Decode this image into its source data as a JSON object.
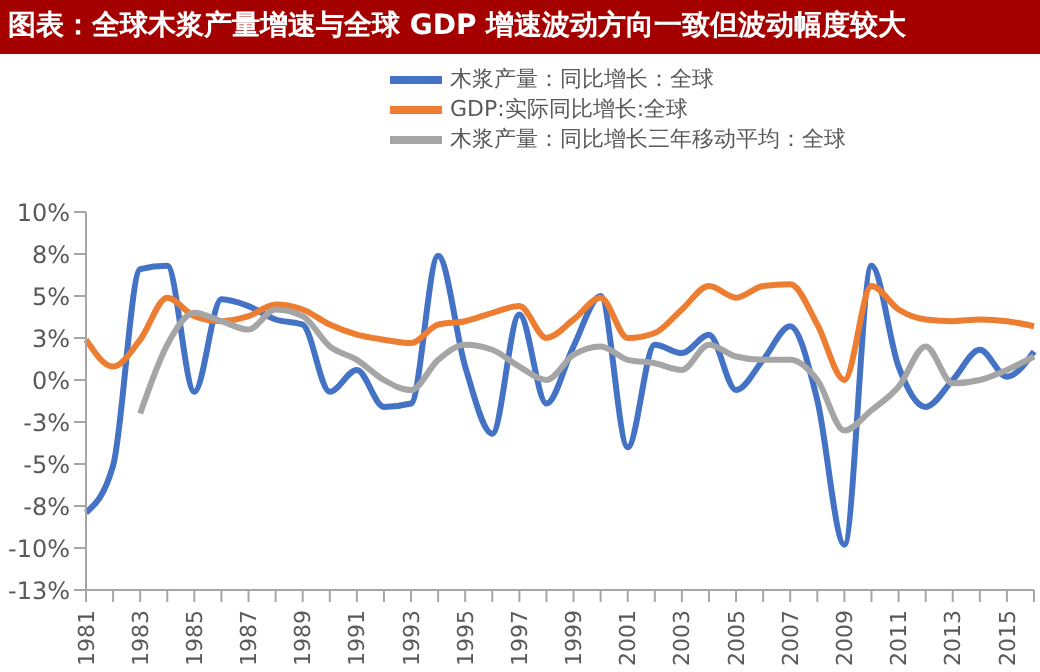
{
  "chart_data": {
    "type": "line",
    "title": "图表：全球木浆产量增速与全球 GDP 增速波动方向一致但波动幅度较大",
    "categories": [
      "1981",
      null,
      "1983",
      null,
      "1985",
      null,
      "1987",
      null,
      "1989",
      null,
      "1991",
      null,
      "1993",
      null,
      "1995",
      null,
      "1997",
      null,
      "1999",
      null,
      "2001",
      null,
      "2003",
      null,
      "2005",
      null,
      "2007",
      null,
      "2009",
      null,
      "2011",
      null,
      "2013",
      null,
      "2015",
      null
    ],
    "series": [
      {
        "name": "木浆产量：同比增长：全球",
        "color": "#4472c4",
        "values": [
          -7.9,
          -5.1,
          6.6,
          6.8,
          -0.7,
          4.8,
          4.4,
          3.6,
          3.3,
          -0.7,
          0.6,
          -1.6,
          -1.4,
          7.4,
          0.8,
          -3.2,
          3.9,
          -1.4,
          2.0,
          5.0,
          -4.0,
          2.1,
          1.6,
          2.7,
          -0.6,
          1.2,
          3.2,
          -1.2,
          -9.8,
          6.8,
          0.8,
          -1.6,
          0.0,
          1.8,
          0.2,
          1.7
        ]
      },
      {
        "name": "GDP:实际同比增长:全球",
        "color": "#ed7d31",
        "values": [
          2.4,
          0.8,
          2.4,
          4.9,
          3.8,
          3.5,
          3.8,
          4.5,
          4.2,
          3.3,
          2.7,
          2.4,
          2.2,
          3.3,
          3.5,
          4.0,
          4.4,
          2.5,
          3.6,
          4.9,
          2.5,
          2.8,
          4.2,
          5.6,
          4.9,
          5.6,
          5.7,
          3.3,
          0.0,
          5.6,
          4.2,
          3.6,
          3.5,
          3.6,
          3.5,
          3.2
        ]
      },
      {
        "name": "木浆产量：同比增长三年移动平均：全球",
        "color": "#a5a5a5",
        "values": [
          null,
          null,
          -2.0,
          2.1,
          4.0,
          3.5,
          3.0,
          4.2,
          3.8,
          2.0,
          1.2,
          0.0,
          -0.6,
          1.2,
          2.1,
          1.8,
          0.8,
          0.0,
          1.5,
          2.0,
          1.2,
          1.0,
          0.6,
          2.1,
          1.4,
          1.2,
          1.2,
          0.0,
          -3.0,
          -1.8,
          -0.4,
          2.0,
          -0.2,
          0.0,
          0.6,
          1.4
        ]
      }
    ],
    "ylim": [
      -12.5,
      10
    ],
    "yticks": [
      {
        "value": -12.5,
        "label": "-13%"
      },
      {
        "value": -10,
        "label": "-10%"
      },
      {
        "value": -7.5,
        "label": "-8%"
      },
      {
        "value": -5,
        "label": "-5%"
      },
      {
        "value": -2.5,
        "label": "-3%"
      },
      {
        "value": 0,
        "label": "0%"
      },
      {
        "value": 2.5,
        "label": "3%"
      },
      {
        "value": 5,
        "label": "5%"
      },
      {
        "value": 7.5,
        "label": "8%"
      },
      {
        "value": 10,
        "label": "10%"
      }
    ],
    "grid": false,
    "legend": "top",
    "marker": "none",
    "line_style": "solid"
  }
}
